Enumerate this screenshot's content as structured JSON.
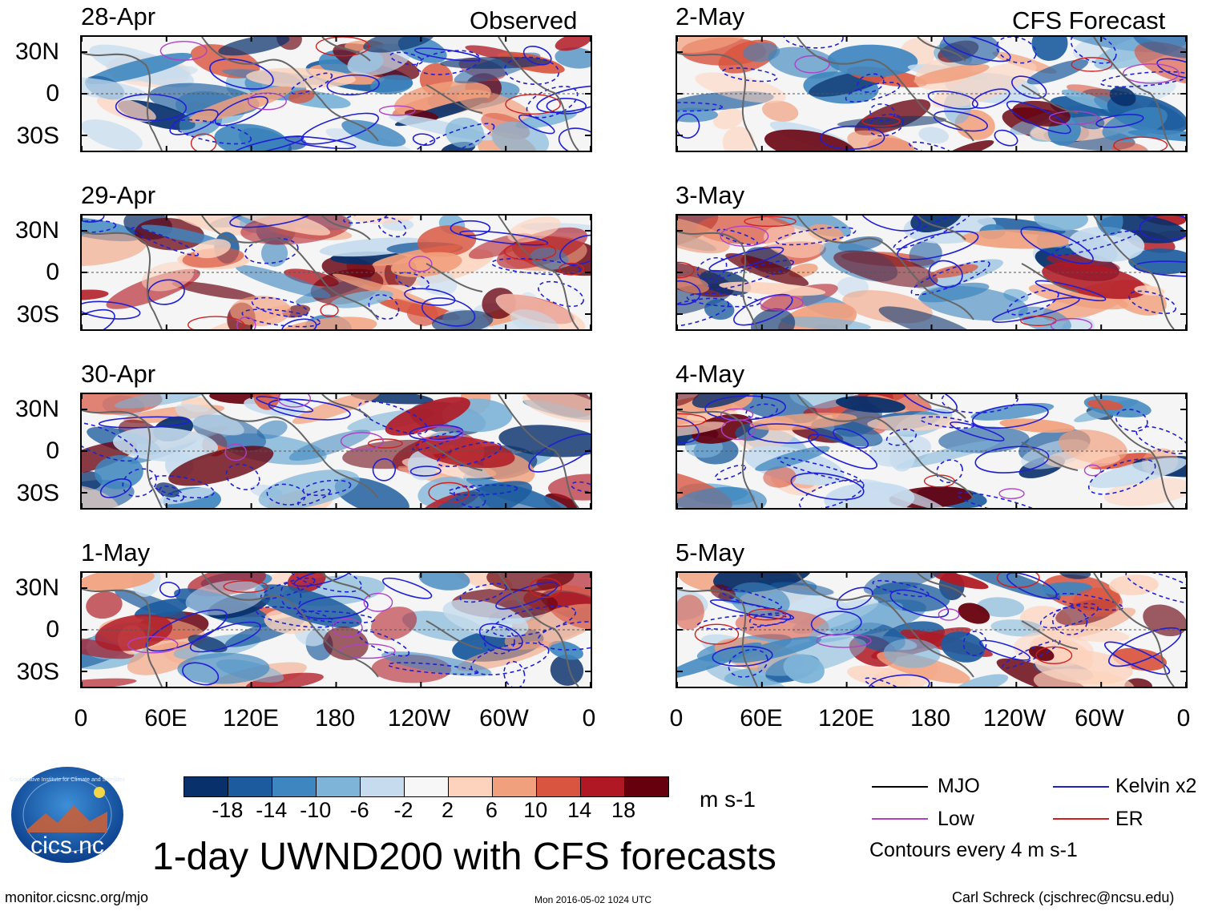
{
  "columns": {
    "left_heading": "Observed",
    "right_heading": "CFS Forecast"
  },
  "panels": [
    {
      "date": "28-Apr",
      "column": "left",
      "row": 0
    },
    {
      "date": "29-Apr",
      "column": "left",
      "row": 1
    },
    {
      "date": "30-Apr",
      "column": "left",
      "row": 2
    },
    {
      "date": "1-May",
      "column": "left",
      "row": 3
    },
    {
      "date": "2-May",
      "column": "right",
      "row": 0
    },
    {
      "date": "3-May",
      "column": "right",
      "row": 1
    },
    {
      "date": "4-May",
      "column": "right",
      "row": 2
    },
    {
      "date": "5-May",
      "column": "right",
      "row": 3
    }
  ],
  "lat_ticks": [
    "30N",
    "0",
    "30S"
  ],
  "lon_ticks": [
    "0",
    "60E",
    "120E",
    "180",
    "120W",
    "60W",
    "0"
  ],
  "colorbar": {
    "labels": [
      "-18",
      "-14",
      "-10",
      "-6",
      "-2",
      "2",
      "6",
      "10",
      "14",
      "18"
    ],
    "colors": [
      "#08306b",
      "#1c5c9e",
      "#3e86bf",
      "#7db4d8",
      "#c6dcee",
      "#f7f7f7",
      "#fdd3bd",
      "#f1a07d",
      "#d9553f",
      "#b01924",
      "#67000d"
    ],
    "units": "m s-1"
  },
  "title": "1-day UWND200 with CFS forecasts",
  "legend": {
    "items": [
      {
        "label": "MJO",
        "color": "#000000"
      },
      {
        "label": "Kelvin x2",
        "color": "#1f1fd6"
      },
      {
        "label": "Low",
        "color": "#b040c8"
      },
      {
        "label": "ER",
        "color": "#d11f1f"
      }
    ],
    "contour_note": "Contours every 4 m s-1"
  },
  "logo_text": "cics.nc",
  "logo_ring_text": "Cooperative Institute for Climate and Satellites",
  "footer": {
    "left": "monitor.cicsnc.org/mjo",
    "center": "Mon 2016-05-02 1024 UTC",
    "right": "Carl Schreck (cjschrec@ncsu.edu)"
  }
}
